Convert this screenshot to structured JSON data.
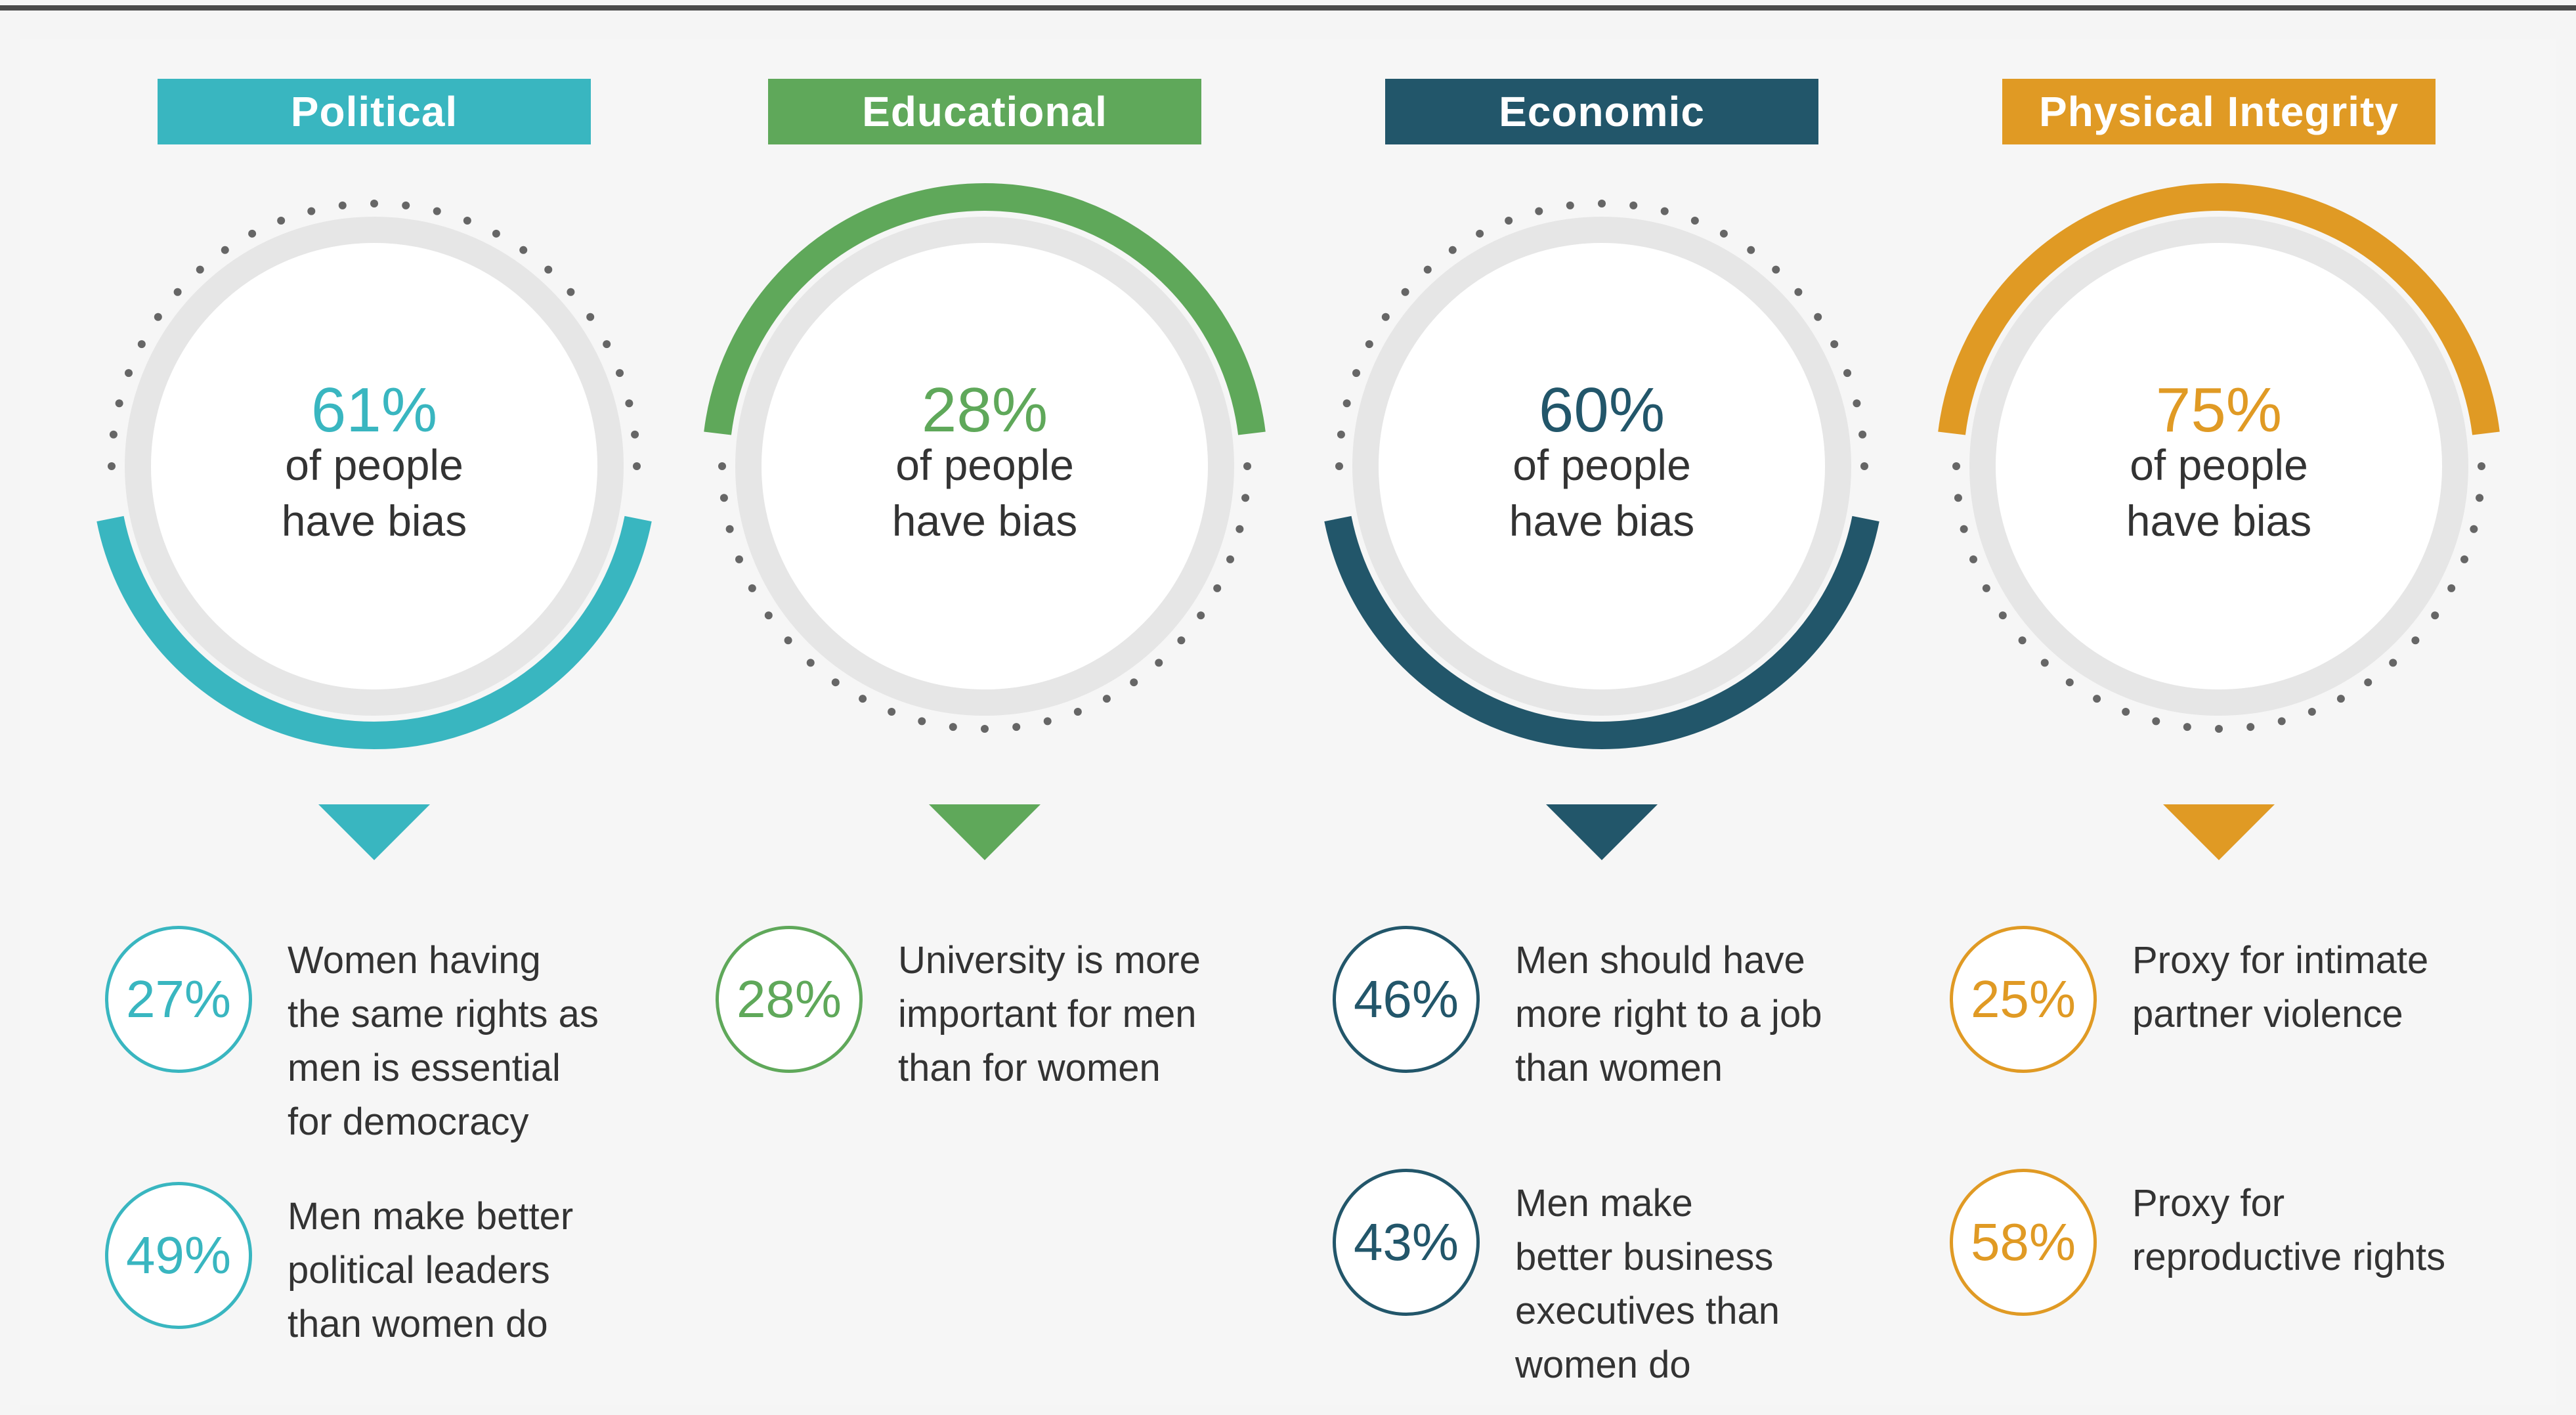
{
  "chart_data": {
    "type": "infographic-gauge",
    "categories": [
      {
        "name": "Political",
        "value": 61,
        "value_label": "61%",
        "line1": "of people",
        "line2": "have bias",
        "color": "#39b6c0",
        "sub": [
          {
            "value": 27,
            "label": "27%",
            "text": "Women having\nthe same rights as\nmen is essential\nfor democracy"
          },
          {
            "value": 49,
            "label": "49%",
            "text": "Men make better\npolitical leaders\nthan women do"
          }
        ]
      },
      {
        "name": "Educational",
        "value": 28,
        "value_label": "28%",
        "line1": "of people",
        "line2": "have bias",
        "color": "#5fa85a",
        "sub": [
          {
            "value": 28,
            "label": "28%",
            "text": "University is more\nimportant for men\nthan for women"
          }
        ]
      },
      {
        "name": "Economic",
        "value": 60,
        "value_label": "60%",
        "line1": "of people",
        "line2": "have bias",
        "color": "#22566a",
        "sub": [
          {
            "value": 46,
            "label": "46%",
            "text": "Men should have\nmore right to a job\nthan women"
          },
          {
            "value": 43,
            "label": "43%",
            "text": "Men make\nbetter business\nexecutives than\nwomen do"
          }
        ]
      },
      {
        "name": "Physical Integrity",
        "value": 75,
        "value_label": "75%",
        "line1": "of people",
        "line2": "have bias",
        "color": "#e09a24",
        "sub": [
          {
            "value": 25,
            "label": "25%",
            "text": "Proxy for intimate\npartner violence"
          },
          {
            "value": 58,
            "label": "58%",
            "text": "Proxy for\nreproductive rights"
          }
        ]
      }
    ]
  }
}
